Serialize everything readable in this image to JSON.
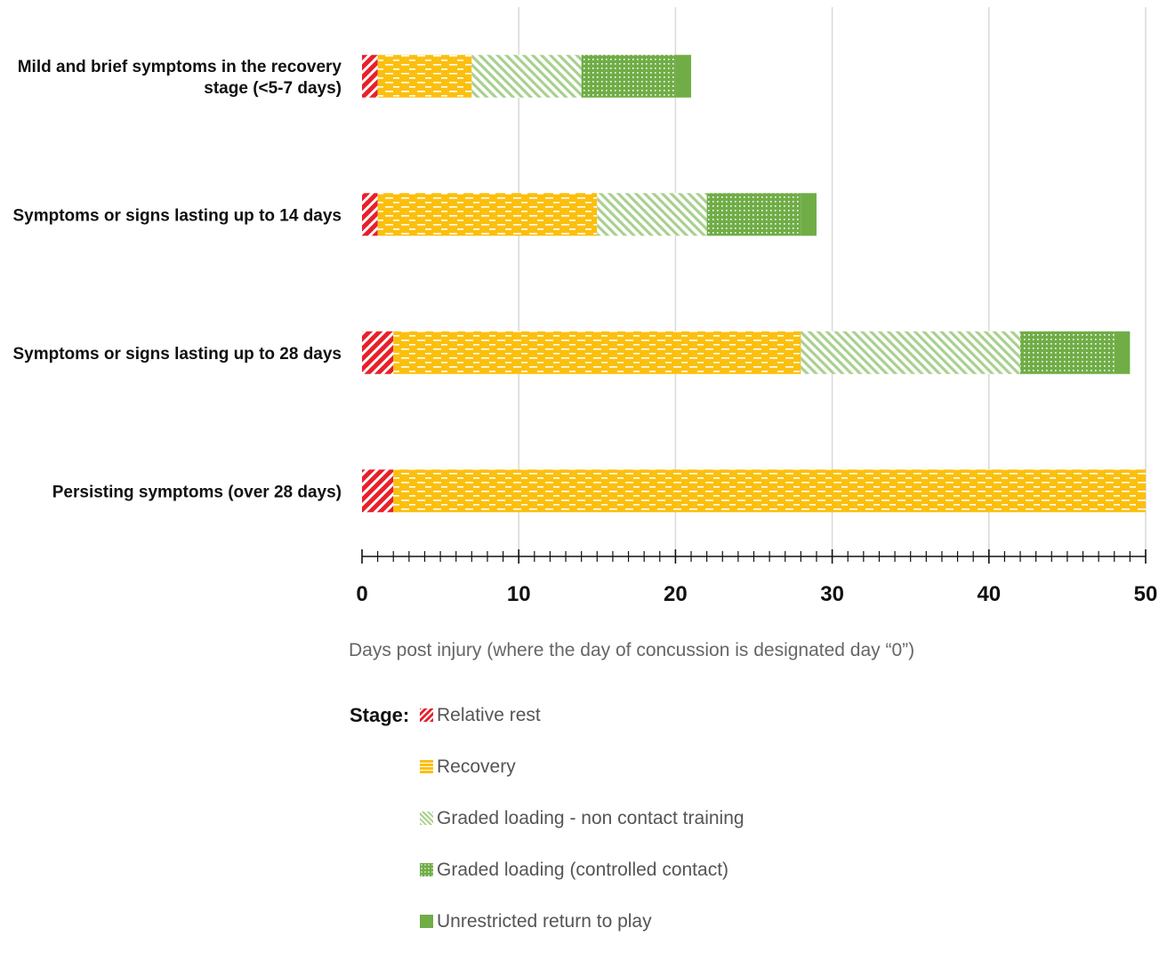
{
  "chart_data": {
    "type": "bar",
    "orientation": "horizontal",
    "stacked": true,
    "categories": [
      [
        "Mild and brief symptoms in the recovery",
        "stage (<5-7 days)"
      ],
      [
        "Symptoms or signs lasting  up to 14 days"
      ],
      [
        "Symptoms or signs lasting  up to 28 days"
      ],
      [
        "Persisting symptoms (over 28 days)"
      ]
    ],
    "series": [
      {
        "name": "Relative rest",
        "values": [
          1,
          1,
          2,
          2
        ],
        "color": "#e8202a",
        "pattern": "diagonal-stripes"
      },
      {
        "name": "Recovery",
        "values": [
          6,
          14,
          26,
          48
        ],
        "color": "#fbbf0e",
        "pattern": "dashes"
      },
      {
        "name": "Graded loading - non contact training",
        "values": [
          7,
          7,
          14,
          0
        ],
        "color": "#a9d08e",
        "pattern": "diagonal-stripes"
      },
      {
        "name": "Graded loading (controlled contact)",
        "values": [
          6,
          6,
          6,
          0
        ],
        "color": "#70ad47",
        "pattern": "dots"
      },
      {
        "name": "Unrestricted return to play",
        "values": [
          1,
          1,
          1,
          0
        ],
        "color": "#70ad47",
        "pattern": "solid"
      }
    ],
    "xlim": [
      0,
      50
    ],
    "xticks": [
      0,
      10,
      20,
      30,
      40,
      50
    ],
    "grid": true,
    "xlabel": "Days post injury (where the day of concussion is designated day “0”)",
    "ylabel": "",
    "legend_title": "Stage:",
    "legend_position": "bottom"
  }
}
